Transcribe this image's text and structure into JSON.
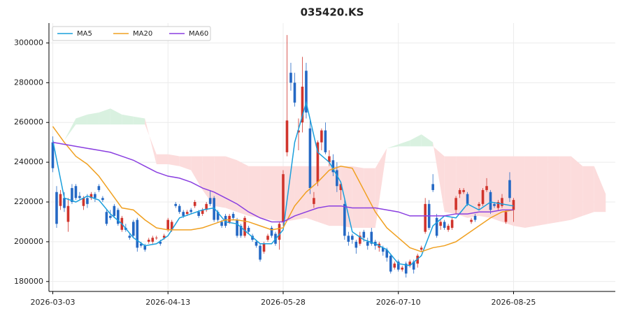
{
  "chart_data": {
    "type": "candlestick",
    "title": "035420.KS",
    "xlim": [
      -1,
      146.5
    ],
    "ylim": [
      175000,
      310000
    ],
    "xticks": [
      {
        "value": 0,
        "label": "2026-03-03"
      },
      {
        "value": 30,
        "label": "2026-04-13"
      },
      {
        "value": 60,
        "label": "2026-05-28"
      },
      {
        "value": 90,
        "label": "2026-07-10"
      },
      {
        "value": 120,
        "label": "2026-08-25"
      }
    ],
    "yticks": [
      180000,
      200000,
      220000,
      240000,
      260000,
      280000,
      300000
    ],
    "grid": true,
    "legend": "upper left",
    "up_color": "#d0342c",
    "down_color": "#2468c4",
    "candles": {
      "open": [
        250000,
        225000,
        218000,
        222000,
        210000,
        227000,
        228000,
        223000,
        218000,
        222000,
        222000,
        224000,
        228000,
        222000,
        215000,
        213000,
        218000,
        216000,
        206000,
        207000,
        203000,
        210000,
        211000,
        199000,
        198000,
        200000,
        200000,
        202000,
        200000,
        202000,
        206000,
        206000,
        219000,
        218000,
        215000,
        214000,
        216000,
        218000,
        215000,
        214000,
        216000,
        222000,
        222000,
        215000,
        210000,
        213000,
        210000,
        214000,
        211000,
        208000,
        203000,
        207000,
        203000,
        200000,
        198000,
        195000,
        201000,
        207000,
        204000,
        201000,
        210000,
        245000,
        285000,
        280000,
        255000,
        260000,
        286000,
        257000,
        219000,
        230000,
        250000,
        256000,
        240000,
        241000,
        236000,
        226000,
        219000,
        203000,
        203000,
        200000,
        199000,
        205000,
        200000,
        205000,
        200000,
        197000,
        197000,
        196000,
        193000,
        187000,
        190000,
        186000,
        189000,
        188000,
        190000,
        189000,
        196000,
        205000,
        219000,
        229000,
        212000,
        208000,
        210000,
        206000,
        207000,
        216000,
        224000,
        225000,
        224000,
        210000,
        213000,
        218000,
        219000,
        226000,
        225000,
        219000,
        217000,
        218000,
        210000,
        231000,
        216000
      ],
      "high": [
        253000,
        228000,
        226000,
        225000,
        222000,
        229000,
        229000,
        225000,
        223000,
        224000,
        225000,
        225000,
        229000,
        223000,
        216000,
        216000,
        219000,
        217000,
        213000,
        209000,
        204000,
        211000,
        212000,
        200000,
        199000,
        202000,
        203000,
        203000,
        201000,
        204000,
        212000,
        211000,
        220000,
        219000,
        216000,
        216000,
        217000,
        221000,
        216000,
        217000,
        220000,
        226000,
        223000,
        216000,
        211000,
        214000,
        214000,
        215000,
        212000,
        209000,
        213000,
        208000,
        204000,
        201000,
        199000,
        200000,
        204000,
        208000,
        205000,
        210000,
        236000,
        304000,
        290000,
        285000,
        262000,
        293000,
        290000,
        261000,
        225000,
        251000,
        257000,
        260000,
        246000,
        244000,
        240000,
        230000,
        222000,
        205000,
        204000,
        201000,
        205000,
        206000,
        202000,
        207000,
        201000,
        200000,
        198000,
        197000,
        194000,
        190000,
        191000,
        188000,
        190000,
        191000,
        191000,
        194000,
        198000,
        222000,
        221000,
        234000,
        214000,
        211000,
        211000,
        209000,
        212000,
        223000,
        227000,
        227000,
        225000,
        212000,
        214000,
        220000,
        227000,
        232000,
        226000,
        220000,
        221000,
        224000,
        216000,
        235000,
        222000
      ],
      "low": [
        235000,
        207000,
        216000,
        215000,
        205000,
        219000,
        221000,
        221000,
        216000,
        217000,
        221000,
        220000,
        225000,
        220000,
        208000,
        211000,
        212000,
        208000,
        205000,
        205000,
        201000,
        202000,
        195000,
        197000,
        195000,
        199000,
        199000,
        201000,
        198000,
        201000,
        205000,
        205000,
        217000,
        214000,
        212000,
        213000,
        214000,
        217000,
        212000,
        213000,
        215000,
        218000,
        210000,
        210000,
        207000,
        207000,
        209000,
        211000,
        202000,
        202000,
        202000,
        204000,
        200000,
        197000,
        190000,
        194000,
        200000,
        202000,
        198000,
        196000,
        208000,
        243000,
        276000,
        268000,
        246000,
        255000,
        262000,
        224000,
        217000,
        228000,
        246000,
        244000,
        238000,
        233000,
        225000,
        221000,
        201000,
        198000,
        199000,
        194000,
        198000,
        200000,
        196000,
        198000,
        196000,
        195000,
        193000,
        190000,
        184000,
        186000,
        185000,
        185000,
        182000,
        187000,
        184000,
        187000,
        195000,
        204000,
        206000,
        225000,
        202000,
        206000,
        206000,
        205000,
        206000,
        214000,
        222000,
        224000,
        218000,
        209000,
        210000,
        216000,
        218000,
        225000,
        214000,
        217000,
        216000,
        217000,
        209000,
        220000,
        210000
      ],
      "close": [
        237000,
        209000,
        224000,
        217000,
        218000,
        220000,
        222000,
        222000,
        222000,
        219000,
        224000,
        222000,
        226000,
        221000,
        209000,
        212000,
        213000,
        209000,
        212000,
        206000,
        202000,
        203000,
        197000,
        198000,
        196000,
        201000,
        202000,
        202000,
        199000,
        203000,
        211000,
        210000,
        218000,
        215000,
        213000,
        215000,
        215000,
        220000,
        213000,
        216000,
        219000,
        219000,
        211000,
        211000,
        208000,
        208000,
        213000,
        212000,
        203000,
        203000,
        212000,
        205000,
        201000,
        198000,
        191000,
        199000,
        203000,
        203000,
        199000,
        209000,
        234000,
        261000,
        280000,
        270000,
        256000,
        278000,
        265000,
        227000,
        222000,
        250000,
        256000,
        245000,
        243000,
        235000,
        228000,
        229000,
        203000,
        200000,
        201000,
        197000,
        203000,
        202000,
        198000,
        199000,
        198000,
        199000,
        195000,
        192000,
        185000,
        189000,
        186000,
        187000,
        184000,
        190000,
        186000,
        193000,
        197000,
        219000,
        207000,
        226000,
        203000,
        210000,
        207000,
        208000,
        211000,
        222000,
        226000,
        226000,
        219000,
        211000,
        211000,
        219000,
        226000,
        228000,
        216000,
        218000,
        220000,
        222000,
        215000,
        222000,
        221000
      ]
    },
    "series": [
      {
        "name": "MA5",
        "color": "#1a9fdc",
        "x": [
          0,
          3,
          6,
          9,
          12,
          15,
          18,
          21,
          24,
          27,
          30,
          33,
          36,
          39,
          42,
          45,
          48,
          51,
          54,
          57,
          60,
          63,
          66,
          69,
          72,
          75,
          78,
          81,
          84,
          87,
          90,
          93,
          96,
          99,
          102,
          105,
          108,
          111,
          114,
          117,
          120
        ],
        "values": [
          251000,
          222000,
          220000,
          223000,
          221000,
          214000,
          209000,
          202000,
          198000,
          199000,
          203000,
          212000,
          214000,
          216000,
          217000,
          210000,
          209000,
          204000,
          199000,
          199000,
          206000,
          250000,
          270000,
          245000,
          240000,
          230000,
          205000,
          201000,
          199000,
          196000,
          189000,
          188000,
          193000,
          208000,
          213000,
          212000,
          219000,
          216000,
          220000,
          219000,
          218000
        ]
      },
      {
        "name": "MA20",
        "color": "#f0a020",
        "x": [
          0,
          3,
          6,
          9,
          12,
          15,
          18,
          21,
          24,
          27,
          30,
          33,
          36,
          39,
          42,
          45,
          48,
          51,
          54,
          57,
          60,
          63,
          66,
          69,
          72,
          75,
          78,
          81,
          84,
          87,
          90,
          93,
          96,
          99,
          102,
          105,
          108,
          111,
          114,
          117,
          120
        ],
        "values": [
          258000,
          250000,
          243000,
          239000,
          233000,
          225000,
          217000,
          216000,
          211000,
          207000,
          206000,
          206000,
          206000,
          207000,
          209000,
          211000,
          211000,
          210000,
          208000,
          206000,
          207000,
          218000,
          225000,
          230000,
          236000,
          238000,
          237000,
          226000,
          215000,
          207000,
          202000,
          197000,
          195000,
          197000,
          198000,
          200000,
          204000,
          208000,
          212000,
          215000,
          216000
        ]
      },
      {
        "name": "MA60",
        "color": "#8a3fe0",
        "x": [
          0,
          3,
          6,
          9,
          12,
          15,
          18,
          21,
          24,
          27,
          30,
          33,
          36,
          39,
          42,
          45,
          48,
          51,
          54,
          57,
          60,
          63,
          66,
          69,
          72,
          75,
          78,
          81,
          84,
          87,
          90,
          93,
          96,
          99,
          102,
          105,
          108,
          111,
          114,
          117,
          120
        ],
        "values": [
          250000,
          249000,
          248000,
          247000,
          246000,
          245000,
          243000,
          241000,
          238000,
          235000,
          233000,
          232000,
          230000,
          227000,
          225000,
          222000,
          219000,
          215000,
          212000,
          210000,
          210000,
          213000,
          215000,
          217000,
          218000,
          218000,
          217000,
          217000,
          217000,
          216000,
          215000,
          213000,
          213000,
          213000,
          213000,
          214000,
          214000,
          215000,
          215000,
          216000,
          216000
        ]
      }
    ],
    "cloud": {
      "up_color": "#d9f1e0",
      "down_color": "#fcdcdc",
      "x": [
        3,
        6,
        9,
        12,
        15,
        18,
        21,
        24,
        27,
        30,
        33,
        36,
        39,
        42,
        45,
        48,
        51,
        54,
        57,
        60,
        63,
        66,
        69,
        72,
        75,
        78,
        81,
        84,
        87,
        90,
        93,
        96,
        99,
        102,
        105,
        108,
        111,
        114,
        117,
        120,
        123,
        126,
        129,
        132,
        135,
        138,
        141,
        144
      ],
      "span_a": [
        251000,
        262000,
        264000,
        265000,
        267000,
        264000,
        263000,
        262000,
        239000,
        239000,
        238000,
        236000,
        226000,
        218000,
        217000,
        215000,
        213000,
        212000,
        211000,
        210000,
        211000,
        212000,
        210000,
        208000,
        208000,
        207000,
        207000,
        207000,
        247000,
        249000,
        251000,
        254000,
        250000,
        215000,
        214000,
        212000,
        213000,
        212000,
        210000,
        208000,
        207000,
        208000,
        209000,
        210000,
        211000,
        213000,
        215000,
        215000
      ],
      "span_b": [
        251000,
        259000,
        259000,
        259000,
        259000,
        259000,
        259000,
        259000,
        244000,
        244000,
        243000,
        243000,
        243000,
        243000,
        243000,
        241000,
        238000,
        238000,
        238000,
        238000,
        238000,
        238000,
        238000,
        238000,
        238000,
        238000,
        237000,
        237000,
        247000,
        248000,
        248000,
        248000,
        248000,
        243000,
        243000,
        243000,
        243000,
        243000,
        243000,
        243000,
        243000,
        243000,
        243000,
        243000,
        243000,
        238000,
        238000,
        224000
      ]
    }
  }
}
